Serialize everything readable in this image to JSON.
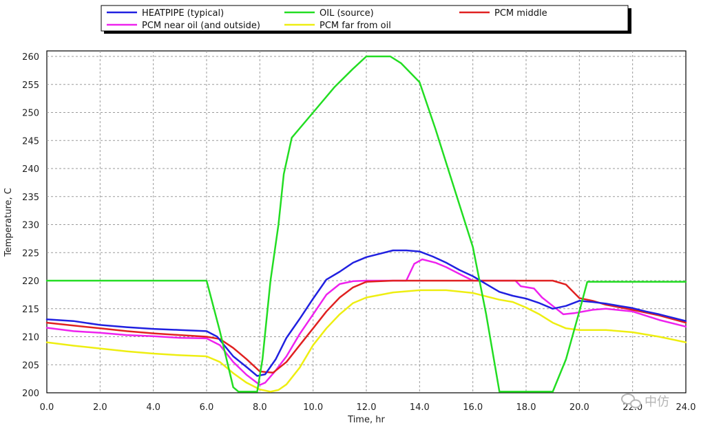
{
  "chart_data": {
    "type": "line",
    "xlabel": "Time, hr",
    "ylabel": "Temperature, C",
    "xlim": [
      0,
      24
    ],
    "ylim": [
      200,
      261
    ],
    "xticks": [
      "0.0",
      "2.0",
      "4.0",
      "6.0",
      "8.0",
      "10.0",
      "12.0",
      "14.0",
      "16.0",
      "18.0",
      "20.0",
      "22.0",
      "24.0"
    ],
    "yticks": [
      "200",
      "205",
      "210",
      "215",
      "220",
      "225",
      "230",
      "235",
      "240",
      "245",
      "250",
      "255",
      "260"
    ],
    "grid": true,
    "legend_position": "top",
    "series": [
      {
        "name": "HEATPIPE (typical)",
        "color": "#2020e0",
        "points": [
          [
            0,
            213.1
          ],
          [
            1,
            212.8
          ],
          [
            2,
            212.1
          ],
          [
            3,
            211.7
          ],
          [
            4,
            211.4
          ],
          [
            5,
            211.2
          ],
          [
            6,
            211.0
          ],
          [
            6.4,
            210.0
          ],
          [
            7,
            206.5
          ],
          [
            7.5,
            204.6
          ],
          [
            7.9,
            203.0
          ],
          [
            8.2,
            203.3
          ],
          [
            8.6,
            206.0
          ],
          [
            9,
            209.8
          ],
          [
            9.5,
            213.2
          ],
          [
            10,
            216.8
          ],
          [
            10.5,
            220.2
          ],
          [
            11,
            221.6
          ],
          [
            11.5,
            223.2
          ],
          [
            12,
            224.2
          ],
          [
            12.5,
            224.8
          ],
          [
            13,
            225.4
          ],
          [
            13.5,
            225.4
          ],
          [
            14,
            225.2
          ],
          [
            14.5,
            224.3
          ],
          [
            15,
            223.2
          ],
          [
            15.5,
            221.9
          ],
          [
            16,
            220.8
          ],
          [
            16.5,
            219.4
          ],
          [
            17,
            218.0
          ],
          [
            17.5,
            217.3
          ],
          [
            18,
            216.8
          ],
          [
            18.5,
            216.0
          ],
          [
            19,
            215.0
          ],
          [
            19.5,
            215.5
          ],
          [
            20,
            216.4
          ],
          [
            20.5,
            216.2
          ],
          [
            21,
            215.9
          ],
          [
            21.5,
            215.5
          ],
          [
            22,
            215.1
          ],
          [
            22.5,
            214.5
          ],
          [
            23,
            214.0
          ],
          [
            24,
            212.8
          ]
        ]
      },
      {
        "name": "OIL (source)",
        "color": "#22dd22",
        "points": [
          [
            0,
            220
          ],
          [
            6,
            220
          ],
          [
            6.5,
            211
          ],
          [
            7,
            201
          ],
          [
            7.2,
            200.2
          ],
          [
            7.9,
            200.2
          ],
          [
            8.1,
            206
          ],
          [
            8.4,
            220
          ],
          [
            8.7,
            230
          ],
          [
            8.9,
            239
          ],
          [
            9.2,
            245.5
          ],
          [
            10,
            250
          ],
          [
            10.8,
            254.5
          ],
          [
            11.5,
            257.8
          ],
          [
            12,
            260
          ],
          [
            12.9,
            260
          ],
          [
            13.3,
            258.8
          ],
          [
            14,
            255.4
          ],
          [
            14.6,
            247
          ],
          [
            15.2,
            238
          ],
          [
            16,
            226
          ],
          [
            16.5,
            214
          ],
          [
            17,
            200.2
          ],
          [
            19,
            200.2
          ],
          [
            19.5,
            206
          ],
          [
            20,
            214.5
          ],
          [
            20.3,
            219.8
          ],
          [
            24,
            219.8
          ]
        ]
      },
      {
        "name": "PCM middle",
        "color": "#e02020",
        "points": [
          [
            0,
            212.5
          ],
          [
            1,
            212.0
          ],
          [
            2,
            211.5
          ],
          [
            3,
            211.0
          ],
          [
            4,
            210.6
          ],
          [
            5,
            210.3
          ],
          [
            6,
            210.0
          ],
          [
            6.5,
            209.6
          ],
          [
            7,
            208.0
          ],
          [
            7.5,
            206.0
          ],
          [
            8,
            203.8
          ],
          [
            8.5,
            203.6
          ],
          [
            9,
            205.5
          ],
          [
            9.5,
            208.5
          ],
          [
            10,
            211.5
          ],
          [
            10.5,
            214.5
          ],
          [
            11,
            217.0
          ],
          [
            11.5,
            218.8
          ],
          [
            12,
            219.8
          ],
          [
            13,
            220.0
          ],
          [
            14,
            220.0
          ],
          [
            15,
            220.0
          ],
          [
            16,
            220.0
          ],
          [
            17,
            220.0
          ],
          [
            18,
            220.0
          ],
          [
            19,
            220.0
          ],
          [
            19.5,
            219.3
          ],
          [
            20,
            216.9
          ],
          [
            20.5,
            216.4
          ],
          [
            21,
            215.7
          ],
          [
            22,
            214.8
          ],
          [
            23,
            213.8
          ],
          [
            24,
            212.5
          ]
        ]
      },
      {
        "name": "PCM near oil (and outside)",
        "color": "#ee22ee",
        "points": [
          [
            0,
            211.6
          ],
          [
            1,
            211.0
          ],
          [
            2,
            210.7
          ],
          [
            3,
            210.3
          ],
          [
            4,
            210.1
          ],
          [
            5,
            209.8
          ],
          [
            6,
            209.7
          ],
          [
            6.5,
            208.5
          ],
          [
            7,
            205.5
          ],
          [
            7.5,
            203.2
          ],
          [
            8,
            201.4
          ],
          [
            8.2,
            201.8
          ],
          [
            8.6,
            204.0
          ],
          [
            9,
            206.5
          ],
          [
            9.5,
            210.5
          ],
          [
            10,
            214.0
          ],
          [
            10.5,
            217.5
          ],
          [
            11,
            219.4
          ],
          [
            11.5,
            219.9
          ],
          [
            12,
            220.0
          ],
          [
            13,
            220.0
          ],
          [
            13.5,
            220.0
          ],
          [
            13.8,
            223.0
          ],
          [
            14.1,
            223.8
          ],
          [
            14.6,
            223.2
          ],
          [
            15,
            222.4
          ],
          [
            15.5,
            221.2
          ],
          [
            16,
            220.0
          ],
          [
            17,
            220.0
          ],
          [
            17.6,
            220.0
          ],
          [
            17.8,
            219.0
          ],
          [
            18.3,
            218.6
          ],
          [
            18.6,
            217.0
          ],
          [
            19,
            215.5
          ],
          [
            19.4,
            214.0
          ],
          [
            19.8,
            214.2
          ],
          [
            20.5,
            214.8
          ],
          [
            21,
            215.0
          ],
          [
            22,
            214.5
          ],
          [
            23,
            213.0
          ],
          [
            24,
            211.8
          ]
        ]
      },
      {
        "name": "PCM far from oil",
        "color": "#eeee11",
        "points": [
          [
            0,
            209.0
          ],
          [
            1,
            208.4
          ],
          [
            2,
            207.9
          ],
          [
            3,
            207.4
          ],
          [
            4,
            207.0
          ],
          [
            5,
            206.7
          ],
          [
            6,
            206.5
          ],
          [
            6.5,
            205.5
          ],
          [
            7,
            203.5
          ],
          [
            7.5,
            201.8
          ],
          [
            8,
            200.6
          ],
          [
            8.4,
            200.2
          ],
          [
            8.7,
            200.5
          ],
          [
            9,
            201.5
          ],
          [
            9.5,
            204.5
          ],
          [
            10,
            208.5
          ],
          [
            10.5,
            211.5
          ],
          [
            11,
            214.0
          ],
          [
            11.5,
            216.0
          ],
          [
            12,
            217.0
          ],
          [
            13,
            217.9
          ],
          [
            14,
            218.3
          ],
          [
            15,
            218.3
          ],
          [
            16,
            217.8
          ],
          [
            16.5,
            217.2
          ],
          [
            17,
            216.6
          ],
          [
            17.5,
            216.2
          ],
          [
            18,
            215.2
          ],
          [
            18.5,
            214.0
          ],
          [
            19,
            212.5
          ],
          [
            19.5,
            211.5
          ],
          [
            20,
            211.2
          ],
          [
            21,
            211.2
          ],
          [
            22,
            210.8
          ],
          [
            23,
            210.0
          ],
          [
            24,
            209.0
          ]
        ]
      }
    ]
  },
  "watermark": {
    "text": "中仿"
  }
}
